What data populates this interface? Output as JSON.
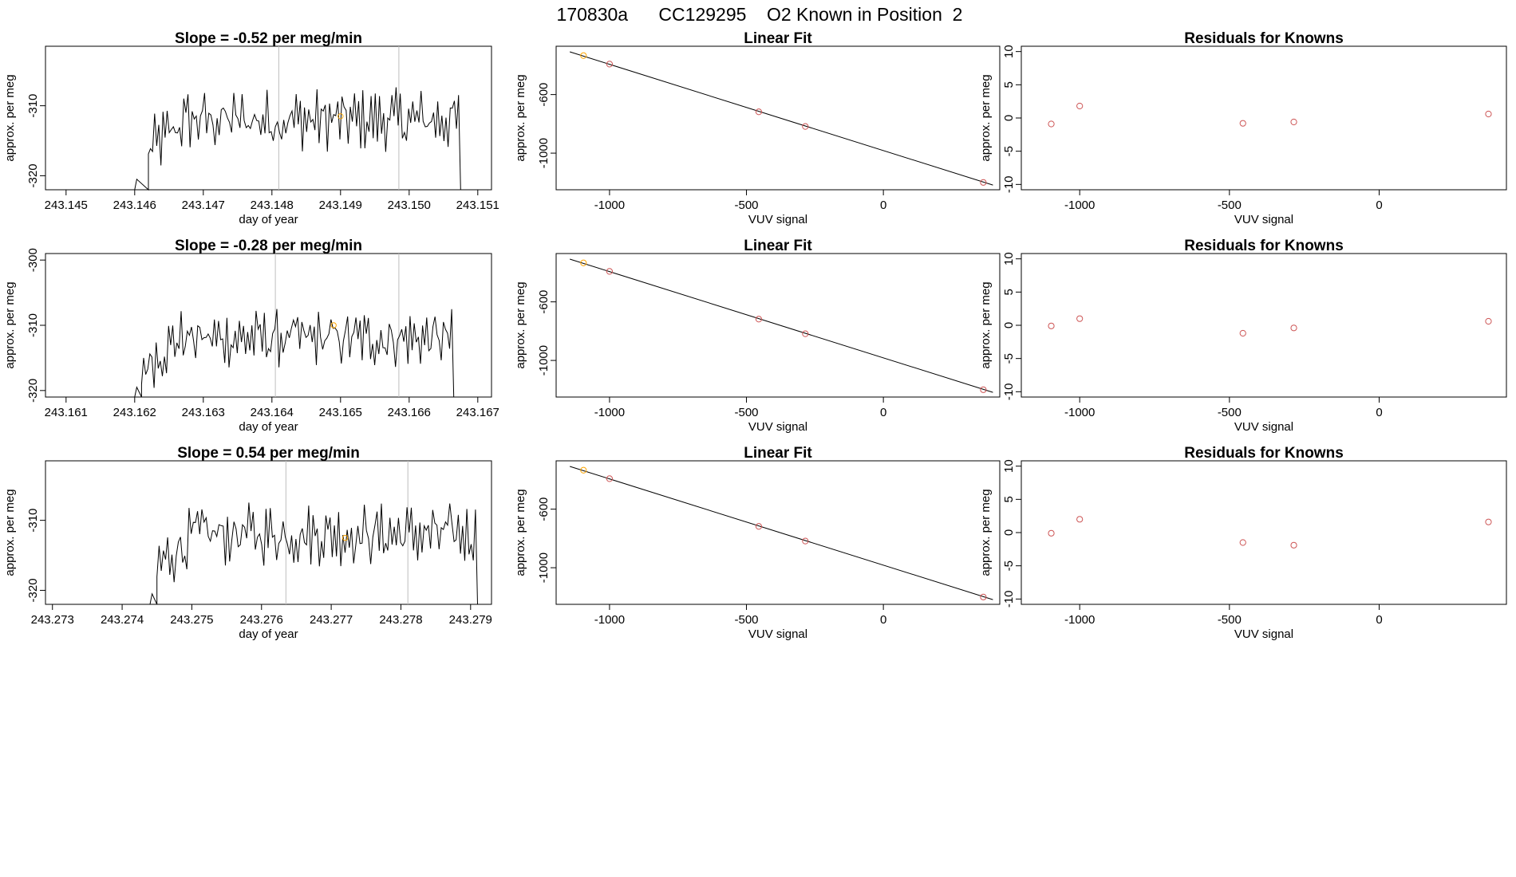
{
  "suptitle": "170830a      CC129295    O2 Known in Position  2",
  "colors": {
    "line": "#000000",
    "known_point": "#cd5555",
    "highlight_point": "#ffa500",
    "marker_line": "#bebebe"
  },
  "chart_data": [
    {
      "type": "line",
      "title": "Slope =  -0.52  per meg/min",
      "xlabel": "day of year",
      "ylabel": "approx. per meg",
      "xlim": [
        243.1447,
        243.1512
      ],
      "ylim": [
        -322.0,
        -301.5
      ],
      "xticks": [
        "243.145",
        "243.146",
        "243.147",
        "243.148",
        "243.149",
        "243.150",
        "243.151"
      ],
      "yticks": [
        "-310",
        "-320"
      ],
      "markers_x": [
        243.1481,
        243.14985
      ],
      "highlight": {
        "x": 243.149,
        "y": -311.5
      },
      "trace": {
        "x_start": 243.1462,
        "x_end": 243.15075,
        "pre_x": 243.146
      }
    },
    {
      "type": "scatter",
      "title": "Linear Fit",
      "xlabel": "VUV signal",
      "ylabel": "approx. per meg",
      "xlim": [
        -1195,
        425
      ],
      "ylim": [
        -1250,
        -270
      ],
      "xticks": [
        "-1000",
        "-500",
        "0"
      ],
      "yticks": [
        "-600",
        "-1000"
      ],
      "points": [
        [
          -1095,
          -334
        ],
        [
          -1000,
          -392
        ],
        [
          -455,
          -718
        ],
        [
          -285,
          -818
        ],
        [
          365,
          -1200
        ]
      ],
      "fit_line": [
        [
          -1145,
          -308
        ],
        [
          400,
          -1218
        ]
      ]
    },
    {
      "type": "scatter",
      "title": "Residuals for Knowns",
      "xlabel": "VUV signal",
      "ylabel": "approx. per meg",
      "xlim": [
        -1195,
        425
      ],
      "ylim": [
        -10.8,
        10.8
      ],
      "xticks": [
        "-1000",
        "-500",
        "0"
      ],
      "yticks": [
        "10",
        "5",
        "0",
        "-5",
        "-10"
      ],
      "points": [
        [
          -1095,
          -0.9
        ],
        [
          -1000,
          1.8
        ],
        [
          -455,
          -0.8
        ],
        [
          -285,
          -0.6
        ],
        [
          365,
          0.6
        ]
      ]
    },
    {
      "type": "line",
      "title": "Slope =  -0.28  per meg/min",
      "xlabel": "day of year",
      "ylabel": "approx. per meg",
      "xlim": [
        243.1607,
        243.1672
      ],
      "ylim": [
        -321.0,
        -299.0
      ],
      "xticks": [
        "243.161",
        "243.162",
        "243.163",
        "243.164",
        "243.165",
        "243.166",
        "243.167"
      ],
      "yticks": [
        "-300",
        "-310",
        "-320"
      ],
      "markers_x": [
        243.16405,
        243.16585
      ],
      "highlight": {
        "x": 243.1649,
        "y": -310.0
      },
      "trace": {
        "x_start": 243.1621,
        "x_end": 243.16665,
        "pre_x": 243.162
      }
    },
    {
      "type": "scatter",
      "title": "Linear Fit",
      "xlabel": "VUV signal",
      "ylabel": "approx. per meg",
      "xlim": [
        -1195,
        425
      ],
      "ylim": [
        -1250,
        -270
      ],
      "xticks": [
        "-1000",
        "-500",
        "0"
      ],
      "yticks": [
        "-600",
        "-1000"
      ],
      "points": [
        [
          -1095,
          -334
        ],
        [
          -1000,
          -392
        ],
        [
          -455,
          -718
        ],
        [
          -285,
          -818
        ],
        [
          365,
          -1200
        ]
      ],
      "fit_line": [
        [
          -1145,
          -308
        ],
        [
          400,
          -1218
        ]
      ]
    },
    {
      "type": "scatter",
      "title": "Residuals for Knowns",
      "xlabel": "VUV signal",
      "ylabel": "approx. per meg",
      "xlim": [
        -1195,
        425
      ],
      "ylim": [
        -10.8,
        10.8
      ],
      "xticks": [
        "-1000",
        "-500",
        "0"
      ],
      "yticks": [
        "10",
        "5",
        "0",
        "-5",
        "-10"
      ],
      "points": [
        [
          -1095,
          -0.1
        ],
        [
          -1000,
          1.0
        ],
        [
          -455,
          -1.2
        ],
        [
          -285,
          -0.4
        ],
        [
          365,
          0.6
        ]
      ]
    },
    {
      "type": "line",
      "title": "Slope =  0.54  per meg/min",
      "xlabel": "day of year",
      "ylabel": "approx. per meg",
      "xlim": [
        243.2729,
        243.2793
      ],
      "ylim": [
        -322.0,
        -301.5
      ],
      "xticks": [
        "243.273",
        "243.274",
        "243.275",
        "243.276",
        "243.277",
        "243.278",
        "243.279"
      ],
      "yticks": [
        "-310",
        "-320"
      ],
      "markers_x": [
        243.27635,
        243.2781
      ],
      "highlight": {
        "x": 243.2772,
        "y": -312.5
      },
      "trace": {
        "x_start": 243.2745,
        "x_end": 243.2791,
        "pre_x": 243.2744
      }
    },
    {
      "type": "scatter",
      "title": "Linear Fit",
      "xlabel": "VUV signal",
      "ylabel": "approx. per meg",
      "xlim": [
        -1195,
        425
      ],
      "ylim": [
        -1250,
        -270
      ],
      "xticks": [
        "-1000",
        "-500",
        "0"
      ],
      "yticks": [
        "-600",
        "-1000"
      ],
      "points": [
        [
          -1095,
          -334
        ],
        [
          -1000,
          -392
        ],
        [
          -455,
          -718
        ],
        [
          -285,
          -818
        ],
        [
          365,
          -1200
        ]
      ],
      "fit_line": [
        [
          -1145,
          -308
        ],
        [
          400,
          -1218
        ]
      ]
    },
    {
      "type": "scatter",
      "title": "Residuals for Knowns",
      "xlabel": "VUV signal",
      "ylabel": "approx. per meg",
      "xlim": [
        -1195,
        425
      ],
      "ylim": [
        -10.8,
        10.8
      ],
      "xticks": [
        "-1000",
        "-500",
        "0"
      ],
      "yticks": [
        "10",
        "5",
        "0",
        "-5",
        "-10"
      ],
      "points": [
        [
          -1095,
          -0.1
        ],
        [
          -1000,
          2.0
        ],
        [
          -455,
          -1.5
        ],
        [
          -285,
          -1.9
        ],
        [
          365,
          1.6
        ]
      ]
    }
  ]
}
